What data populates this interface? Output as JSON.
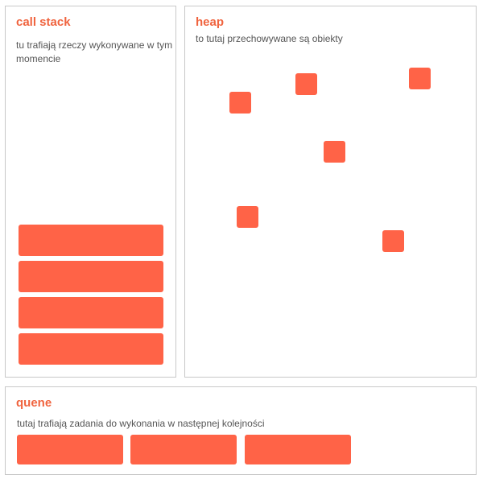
{
  "call_stack": {
    "title": "call stack",
    "description": "tu trafiają rzeczy wykonywane w tym momencie",
    "frame_count": 4
  },
  "heap": {
    "title": "heap",
    "description": "to tutaj przechowywane są obiekty",
    "object_count": 6
  },
  "queue": {
    "title": "quene",
    "description": "tutaj trafiają zadania do wykonania w następnej kolejności",
    "task_count": 3
  },
  "colors": {
    "accent": "#f0643f",
    "block": "#ff6347",
    "border": "#c8c8c8",
    "text": "#555555"
  }
}
